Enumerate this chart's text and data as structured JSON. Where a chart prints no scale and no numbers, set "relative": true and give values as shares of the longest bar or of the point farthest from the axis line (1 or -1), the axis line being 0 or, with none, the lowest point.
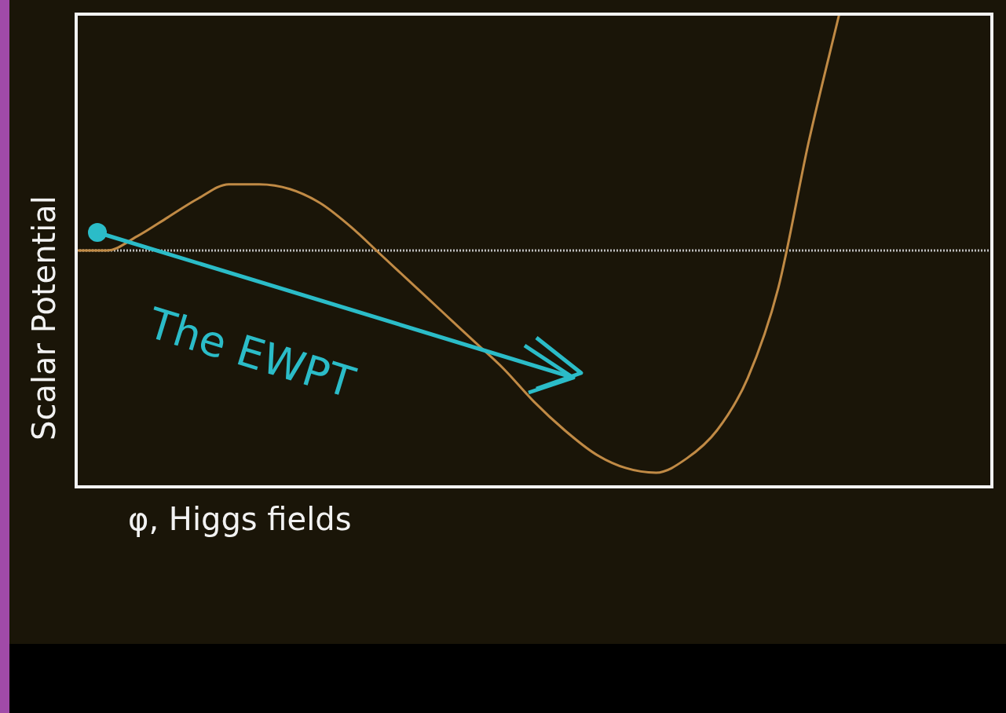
{
  "chart_data": {
    "type": "line",
    "relative": true,
    "xlabel": "φ, Higgs fields",
    "ylabel": "Scalar Potential",
    "categories": [
      null,
      null,
      null,
      null,
      null,
      null,
      null,
      null,
      null,
      null,
      null,
      null,
      null,
      null,
      null,
      null,
      null,
      null,
      null,
      null,
      null,
      null,
      null,
      null,
      null,
      null,
      null,
      null,
      null,
      null,
      null
    ],
    "series": [
      {
        "color": "#c08a45",
        "values": [
          0.5,
          0.5,
          0.53,
          0.57,
          0.61,
          0.64,
          0.64,
          0.63,
          0.6,
          0.55,
          0.49,
          0.43,
          0.37,
          0.31,
          0.25,
          0.18,
          0.12,
          0.07,
          0.04,
          0.03,
          0.06,
          0.12,
          0.23,
          0.42,
          0.73,
          1.0,
          null,
          null,
          null,
          null,
          null
        ]
      }
    ],
    "ref_lines": [
      {
        "axis": "y",
        "value": 0.5,
        "color": "#bdbdbd",
        "line_style": "dotted"
      }
    ],
    "annotations": [
      "The EWPT"
    ],
    "legend": false,
    "marker": "none",
    "line_style": "solid"
  }
}
